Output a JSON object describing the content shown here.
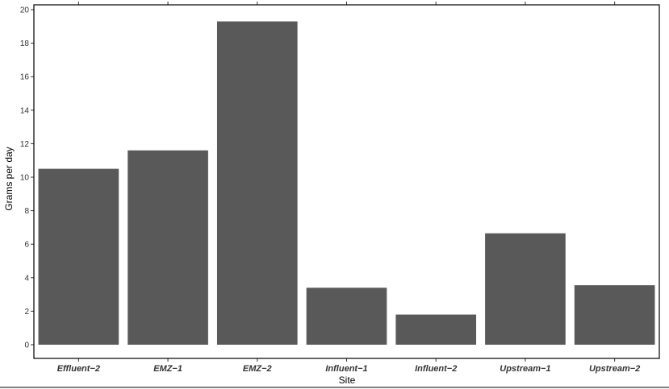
{
  "chart_data": {
    "type": "bar",
    "categories": [
      "Effluent−2",
      "EMZ−1",
      "EMZ−2",
      "Influent−1",
      "Influent−2",
      "Upstream−1",
      "Upstream−2"
    ],
    "values": [
      10.5,
      11.6,
      19.3,
      3.4,
      1.8,
      6.65,
      3.55
    ],
    "title": "",
    "xlabel": "Site",
    "ylabel": "Grams per day",
    "ylim": [
      0,
      20
    ],
    "yticks": [
      0,
      2,
      4,
      6,
      8,
      10,
      12,
      14,
      16,
      18,
      20
    ],
    "bar_color": "#595959",
    "grid": false,
    "legend": "none"
  }
}
